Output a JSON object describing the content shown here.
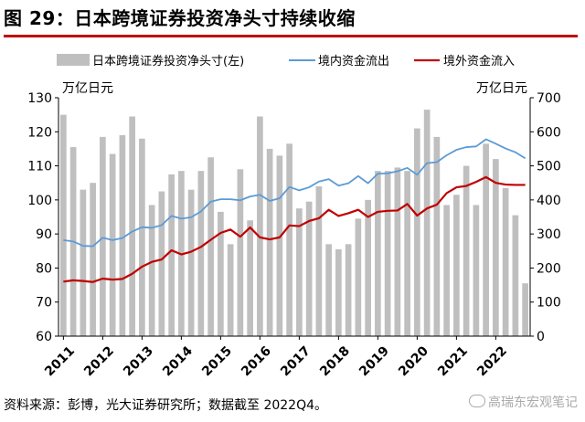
{
  "title": "图 29：日本跨境证券投资净头寸持续收缩",
  "footer": "资料来源：彭博，光大证券研究所；数据截至 2022Q4。",
  "watermark": "高瑞东宏观笔记",
  "chart_data": {
    "type": "bar+line",
    "left_unit": "万亿日元",
    "right_unit": "万亿日元",
    "left_axis": {
      "min": 60,
      "max": 130,
      "ticks": [
        60,
        70,
        80,
        90,
        100,
        110,
        120,
        130
      ]
    },
    "right_axis": {
      "min": 0,
      "max": 700,
      "ticks": [
        0,
        100,
        200,
        300,
        400,
        500,
        600,
        700
      ]
    },
    "x_labels": [
      "2011",
      "2012",
      "2013",
      "2014",
      "2015",
      "2016",
      "2017",
      "2018",
      "2019",
      "2020",
      "2021",
      "2022"
    ],
    "colors": {
      "bar": "#bfbfbf",
      "outflow": "#5b9bd5",
      "inflow": "#c00000"
    },
    "series": [
      {
        "name": "日本跨境证券投资净头寸(左)",
        "axis": "left",
        "type": "bar",
        "values": [
          125,
          115.5,
          103,
          105,
          118.5,
          113.5,
          119,
          124.5,
          118,
          98.5,
          102.5,
          107.5,
          108.5,
          103,
          108.5,
          112.5,
          96.5,
          87,
          109,
          94,
          124.5,
          115,
          113,
          116.5,
          97.5,
          99.5,
          104,
          87,
          85.5,
          87,
          94.5,
          100,
          108.5,
          108.5,
          109.5,
          108.5,
          121,
          126.5,
          118.5,
          98.5,
          101.5,
          110,
          98.5,
          116.5,
          112,
          103.5,
          95.5,
          75.5
        ]
      },
      {
        "name": "境内资金流出",
        "axis": "right",
        "type": "line",
        "values": [
          282,
          278,
          265,
          264,
          289,
          282,
          288,
          307,
          320,
          318,
          326,
          353,
          345,
          349,
          366,
          395,
          402,
          402,
          399,
          410,
          415,
          397,
          405,
          438,
          428,
          437,
          454,
          461,
          442,
          449,
          470,
          449,
          477,
          478,
          484,
          494,
          474,
          508,
          511,
          531,
          547,
          555,
          557,
          578,
          565,
          551,
          540,
          522
        ]
      },
      {
        "name": "境外资金流入",
        "axis": "right",
        "type": "line",
        "values": [
          160,
          164,
          162,
          159,
          169,
          166,
          168,
          183,
          204,
          218,
          225,
          252,
          240,
          248,
          262,
          283,
          303,
          313,
          292,
          319,
          290,
          284,
          290,
          325,
          323,
          338,
          346,
          371,
          353,
          361,
          371,
          350,
          365,
          368,
          369,
          388,
          354,
          375,
          386,
          420,
          437,
          441,
          453,
          467,
          450,
          445,
          444,
          444
        ]
      }
    ]
  }
}
